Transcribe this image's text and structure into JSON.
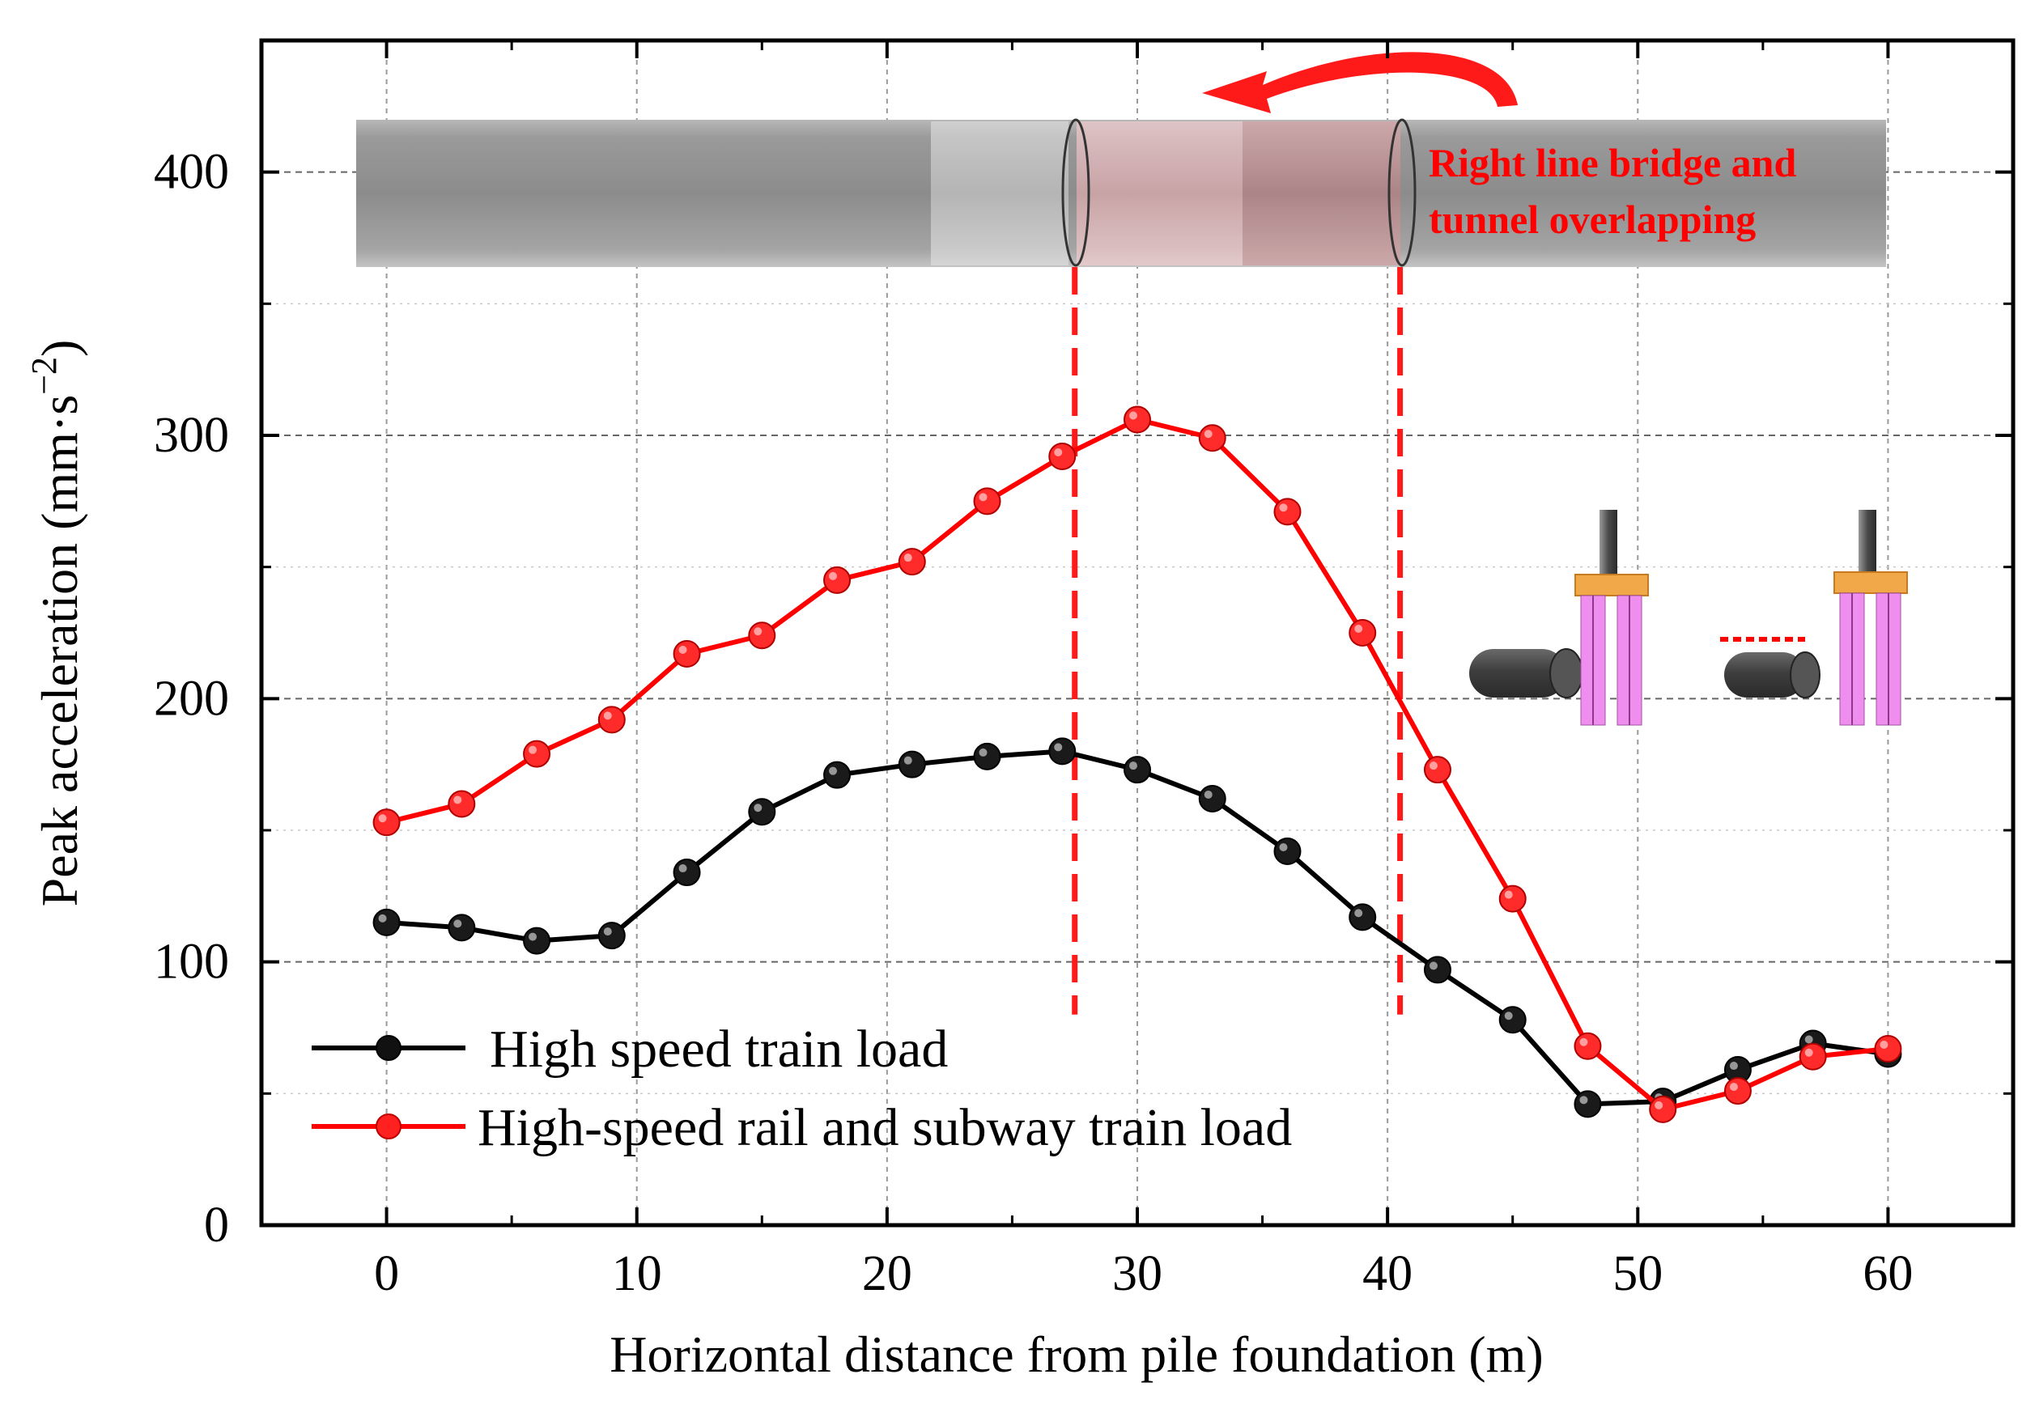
{
  "chart_data": {
    "type": "line",
    "title": "",
    "xlabel": "Horizontal distance from pile foundation (m)",
    "ylabel": "Peak acceleration (mm·s",
    "ylabel_unit_exponent": "−2",
    "ylabel_close": ")",
    "xlim": [
      -5,
      65
    ],
    "ylim": [
      0,
      450
    ],
    "xticks": [
      0,
      10,
      20,
      30,
      40,
      50,
      60
    ],
    "yticks": [
      0,
      100,
      200,
      300,
      400
    ],
    "grid": true,
    "x": [
      0,
      3,
      6,
      9,
      12,
      15,
      18,
      21,
      24,
      27,
      30,
      33,
      36,
      39,
      42,
      45,
      48,
      51,
      54,
      57,
      60
    ],
    "series": [
      {
        "name": "High speed train load",
        "color": "#000000",
        "values": [
          115,
          113,
          108,
          110,
          134,
          157,
          171,
          175,
          178,
          180,
          173,
          162,
          142,
          117,
          97,
          78,
          46,
          47,
          59,
          69,
          65
        ]
      },
      {
        "name": "High-speed rail and subway train load",
        "color": "#ff0000",
        "values": [
          153,
          160,
          179,
          192,
          217,
          224,
          245,
          252,
          275,
          292,
          306,
          299,
          271,
          225,
          173,
          124,
          68,
          44,
          51,
          64,
          67
        ]
      }
    ],
    "legend": "bottom-left",
    "reference_lines_x": [
      27.5,
      40.5
    ],
    "annotation": {
      "line1": "Right line bridge and",
      "line2": "tunnel overlapping",
      "color": "#ff0000"
    }
  }
}
